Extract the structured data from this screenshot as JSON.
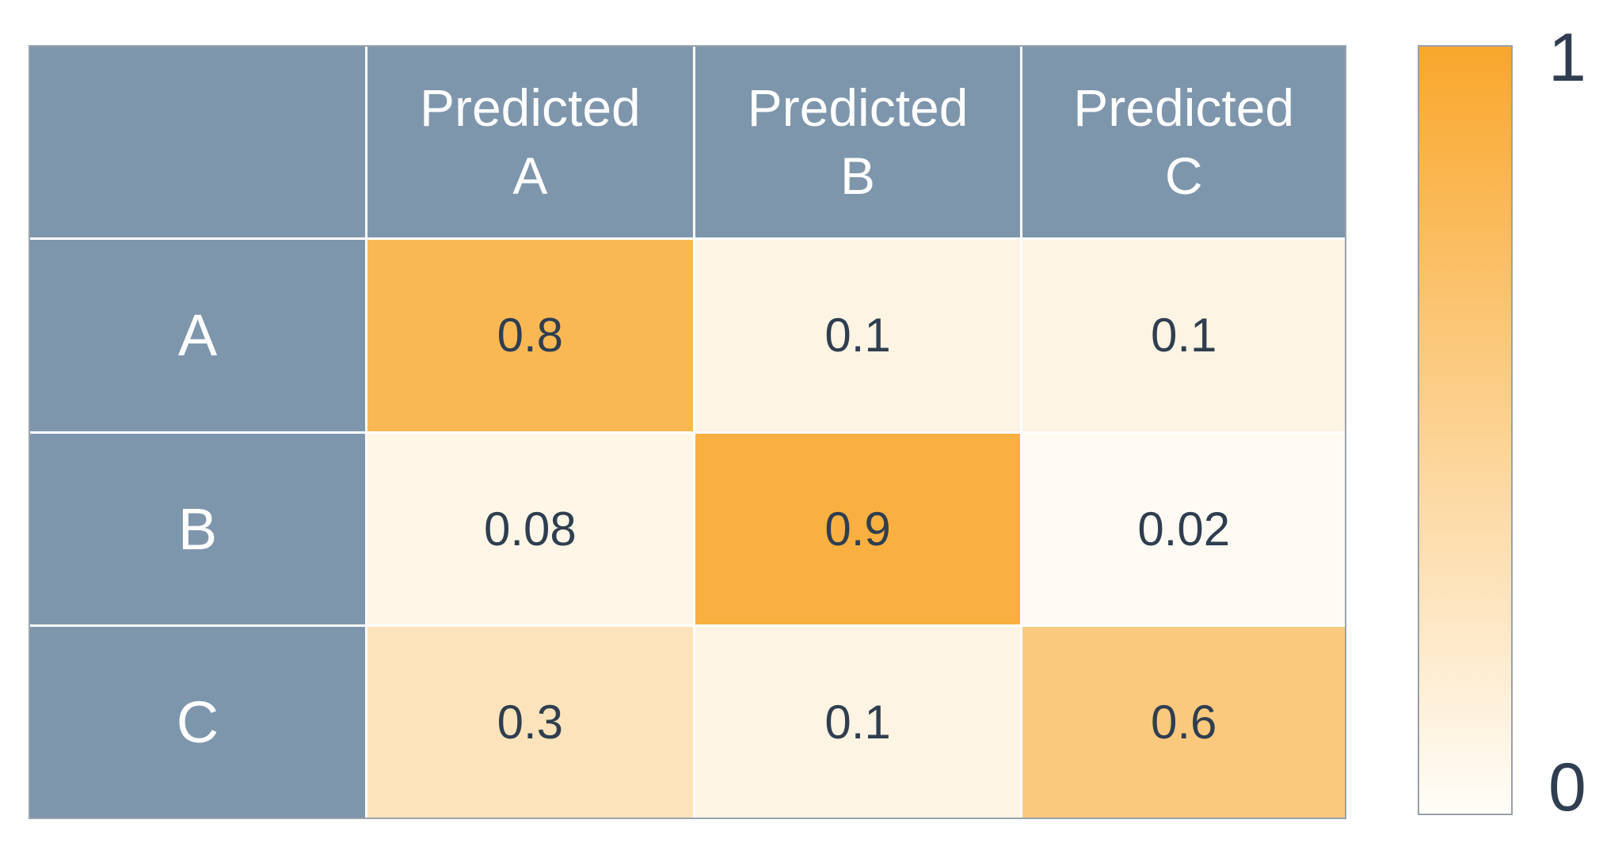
{
  "chart_data": {
    "type": "heatmap",
    "title": "",
    "col_header_prefix": "Predicted",
    "col_categories": [
      "A",
      "B",
      "C"
    ],
    "row_categories": [
      "A",
      "B",
      "C"
    ],
    "values": [
      [
        0.8,
        0.1,
        0.1
      ],
      [
        0.08,
        0.9,
        0.02
      ],
      [
        0.3,
        0.1,
        0.6
      ]
    ],
    "value_labels": [
      [
        "0.8",
        "0.1",
        "0.1"
      ],
      [
        "0.08",
        "0.9",
        "0.02"
      ],
      [
        "0.3",
        "0.1",
        "0.6"
      ]
    ],
    "value_range": [
      0,
      1
    ],
    "legend_position": "right",
    "colorbar": {
      "top_label": "1",
      "bottom_label": "0"
    }
  },
  "colors": {
    "background": "#ffffff",
    "header_bg": "#7e96ac",
    "header_text": "#ffffff",
    "value_text": "#2f3e50",
    "colormap_min": "#fffdf8",
    "colormap_max": "#f9a72c",
    "grid_line": "#ffffff",
    "outer_border": "#9aa3ac"
  }
}
